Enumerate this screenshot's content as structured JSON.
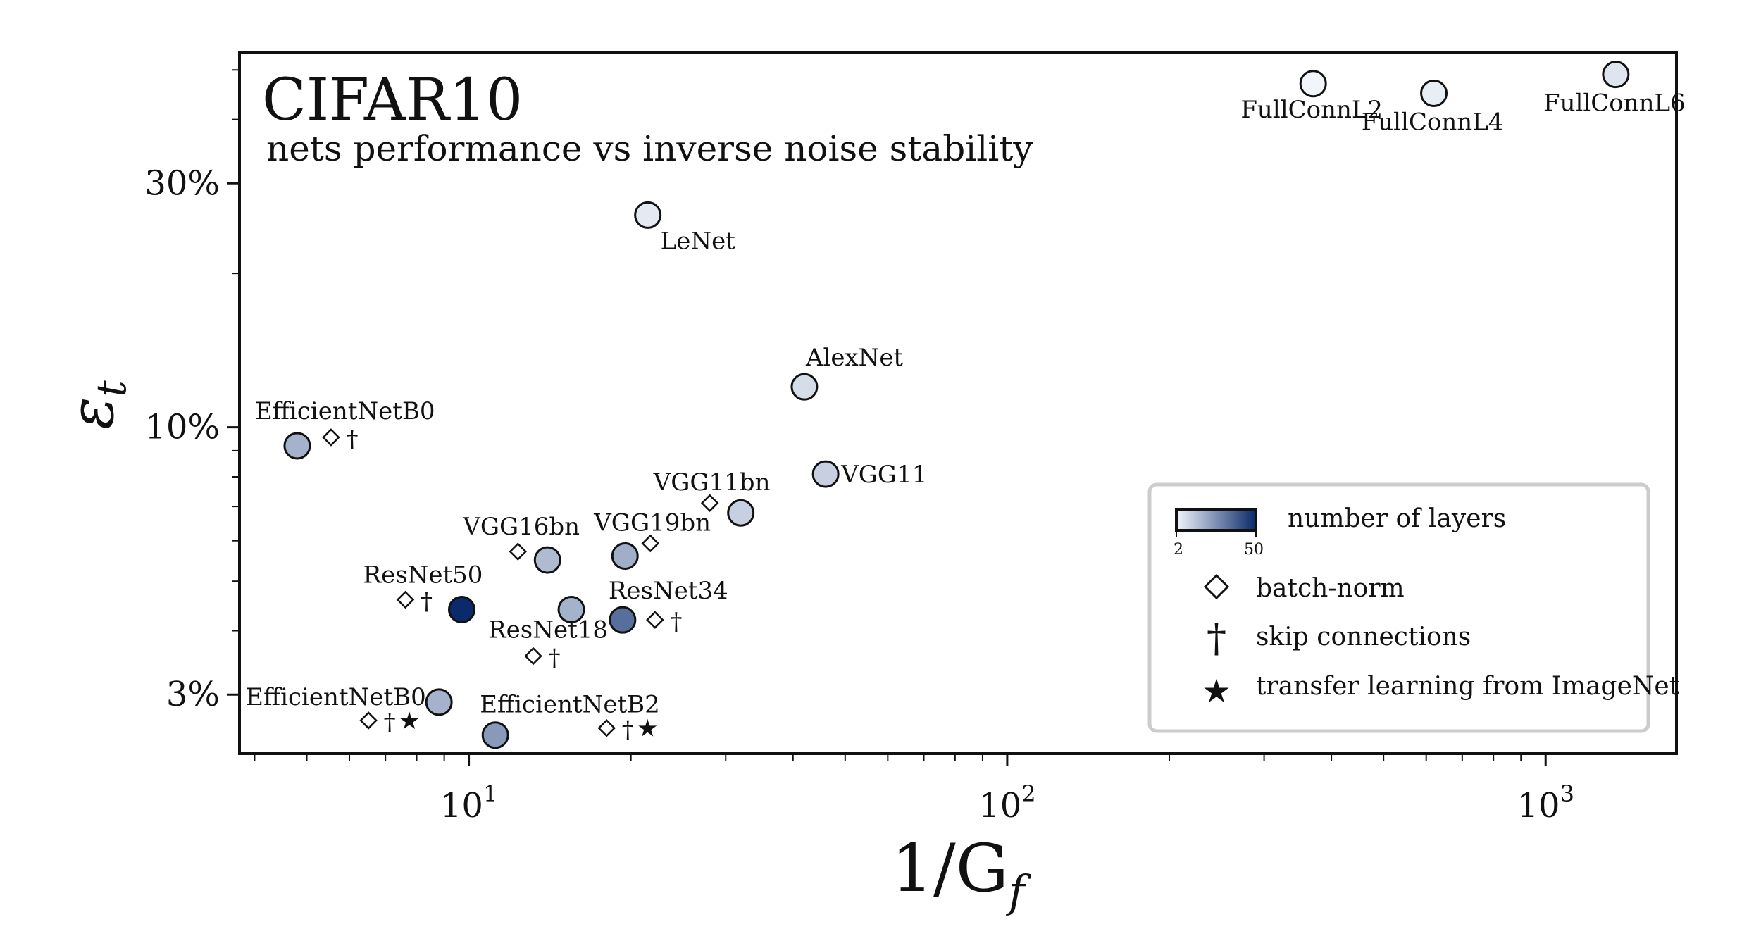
{
  "chart_data": {
    "type": "scatter",
    "title": "CIFAR10",
    "subtitle": "nets performance vs inverse noise stability",
    "xlabel_base": "1/G",
    "xlabel_sub": "f",
    "ylabel_base": "ε",
    "ylabel_sub": "t",
    "xscale": "log",
    "yscale": "log",
    "xlim": [
      3.75,
      1750
    ],
    "ylim": [
      2.3,
      54
    ],
    "x_ticks": [
      {
        "value": 10,
        "base": "10",
        "exp": "1"
      },
      {
        "value": 100,
        "base": "10",
        "exp": "2"
      },
      {
        "value": 1000,
        "base": "10",
        "exp": "3"
      }
    ],
    "y_ticks": [
      {
        "value": 3,
        "label": "3%"
      },
      {
        "value": 10,
        "label": "10%"
      },
      {
        "value": 30,
        "label": "30%"
      }
    ],
    "colorbar": {
      "min": 2,
      "max": 50,
      "min_label": "2",
      "max_label": "50",
      "color_low": "#f2f6fb",
      "color_high": "#0b2a6b"
    },
    "points": [
      {
        "name": "FullConnL2",
        "x": 370,
        "y": 47,
        "layers": 2,
        "batchnorm": false,
        "skip": false,
        "transfer": false
      },
      {
        "name": "FullConnL4",
        "x": 620,
        "y": 45,
        "layers": 4,
        "batchnorm": false,
        "skip": false,
        "transfer": false
      },
      {
        "name": "FullConnL6",
        "x": 1350,
        "y": 49,
        "layers": 6,
        "batchnorm": false,
        "skip": false,
        "transfer": false
      },
      {
        "name": "LeNet",
        "x": 21.5,
        "y": 26,
        "layers": 5,
        "batchnorm": false,
        "skip": false,
        "transfer": false
      },
      {
        "name": "AlexNet",
        "x": 42,
        "y": 12,
        "layers": 8,
        "batchnorm": false,
        "skip": false,
        "transfer": false
      },
      {
        "name": "VGG11",
        "x": 46,
        "y": 8.1,
        "layers": 11,
        "batchnorm": false,
        "skip": false,
        "transfer": false
      },
      {
        "name": "VGG11bn",
        "x": 32,
        "y": 6.8,
        "layers": 11,
        "batchnorm": true,
        "skip": false,
        "transfer": false
      },
      {
        "name": "VGG16bn",
        "x": 14,
        "y": 5.5,
        "layers": 16,
        "batchnorm": true,
        "skip": false,
        "transfer": false
      },
      {
        "name": "VGG19bn",
        "x": 19.5,
        "y": 5.6,
        "layers": 19,
        "batchnorm": true,
        "skip": false,
        "transfer": false
      },
      {
        "name": "EfficientNetB0",
        "x": 4.8,
        "y": 9.2,
        "layers": 18,
        "batchnorm": true,
        "skip": true,
        "transfer": false
      },
      {
        "name": "ResNet50",
        "x": 9.7,
        "y": 4.4,
        "layers": 50,
        "batchnorm": true,
        "skip": true,
        "transfer": false
      },
      {
        "name": "ResNet18",
        "x": 15.5,
        "y": 4.4,
        "layers": 18,
        "batchnorm": true,
        "skip": true,
        "transfer": false
      },
      {
        "name": "ResNet34",
        "x": 19.3,
        "y": 4.2,
        "layers": 34,
        "batchnorm": true,
        "skip": true,
        "transfer": false
      },
      {
        "name": "EfficientNetB0",
        "x": 8.8,
        "y": 2.9,
        "layers": 18,
        "batchnorm": true,
        "skip": true,
        "transfer": true
      },
      {
        "name": "EfficientNetB2",
        "x": 11.2,
        "y": 2.5,
        "layers": 24,
        "batchnorm": true,
        "skip": true,
        "transfer": true
      }
    ],
    "legend": {
      "placement": "bottom-right",
      "colorbar_label": "number of layers",
      "batchnorm_label": "batch-norm",
      "skip_label": "skip connections",
      "transfer_label": "transfer learning from ImageNet"
    },
    "symbols": {
      "skip": "†",
      "transfer": "★"
    },
    "colors": {
      "axis": "#111111",
      "point_edge": "#111111",
      "legend_border": "#cccccc"
    }
  }
}
